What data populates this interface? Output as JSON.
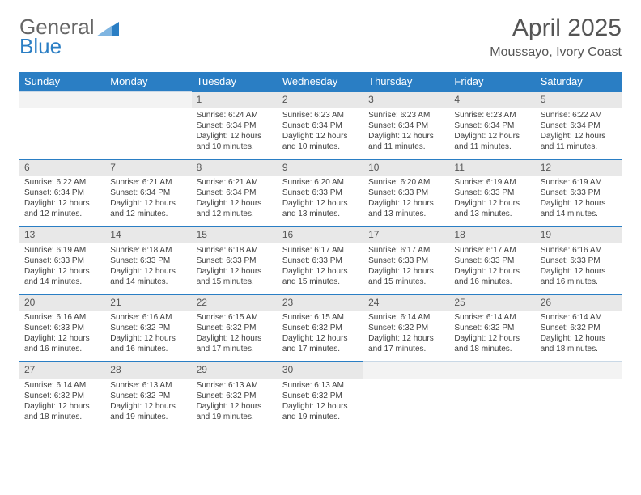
{
  "logo": {
    "part1": "General",
    "part2": "Blue"
  },
  "title": "April 2025",
  "location": "Moussayo, Ivory Coast",
  "colors": {
    "header_bg": "#2a7ec4",
    "header_text": "#ffffff",
    "day_num_bg": "#e8e8e8",
    "day_border": "#2a7ec4",
    "body_bg": "#ffffff",
    "text": "#404040"
  },
  "columns": [
    "Sunday",
    "Monday",
    "Tuesday",
    "Wednesday",
    "Thursday",
    "Friday",
    "Saturday"
  ],
  "rows": [
    [
      null,
      null,
      {
        "n": "1",
        "sr": "Sunrise: 6:24 AM",
        "ss": "Sunset: 6:34 PM",
        "dl1": "Daylight: 12 hours",
        "dl2": "and 10 minutes."
      },
      {
        "n": "2",
        "sr": "Sunrise: 6:23 AM",
        "ss": "Sunset: 6:34 PM",
        "dl1": "Daylight: 12 hours",
        "dl2": "and 10 minutes."
      },
      {
        "n": "3",
        "sr": "Sunrise: 6:23 AM",
        "ss": "Sunset: 6:34 PM",
        "dl1": "Daylight: 12 hours",
        "dl2": "and 11 minutes."
      },
      {
        "n": "4",
        "sr": "Sunrise: 6:23 AM",
        "ss": "Sunset: 6:34 PM",
        "dl1": "Daylight: 12 hours",
        "dl2": "and 11 minutes."
      },
      {
        "n": "5",
        "sr": "Sunrise: 6:22 AM",
        "ss": "Sunset: 6:34 PM",
        "dl1": "Daylight: 12 hours",
        "dl2": "and 11 minutes."
      }
    ],
    [
      {
        "n": "6",
        "sr": "Sunrise: 6:22 AM",
        "ss": "Sunset: 6:34 PM",
        "dl1": "Daylight: 12 hours",
        "dl2": "and 12 minutes."
      },
      {
        "n": "7",
        "sr": "Sunrise: 6:21 AM",
        "ss": "Sunset: 6:34 PM",
        "dl1": "Daylight: 12 hours",
        "dl2": "and 12 minutes."
      },
      {
        "n": "8",
        "sr": "Sunrise: 6:21 AM",
        "ss": "Sunset: 6:34 PM",
        "dl1": "Daylight: 12 hours",
        "dl2": "and 12 minutes."
      },
      {
        "n": "9",
        "sr": "Sunrise: 6:20 AM",
        "ss": "Sunset: 6:33 PM",
        "dl1": "Daylight: 12 hours",
        "dl2": "and 13 minutes."
      },
      {
        "n": "10",
        "sr": "Sunrise: 6:20 AM",
        "ss": "Sunset: 6:33 PM",
        "dl1": "Daylight: 12 hours",
        "dl2": "and 13 minutes."
      },
      {
        "n": "11",
        "sr": "Sunrise: 6:19 AM",
        "ss": "Sunset: 6:33 PM",
        "dl1": "Daylight: 12 hours",
        "dl2": "and 13 minutes."
      },
      {
        "n": "12",
        "sr": "Sunrise: 6:19 AM",
        "ss": "Sunset: 6:33 PM",
        "dl1": "Daylight: 12 hours",
        "dl2": "and 14 minutes."
      }
    ],
    [
      {
        "n": "13",
        "sr": "Sunrise: 6:19 AM",
        "ss": "Sunset: 6:33 PM",
        "dl1": "Daylight: 12 hours",
        "dl2": "and 14 minutes."
      },
      {
        "n": "14",
        "sr": "Sunrise: 6:18 AM",
        "ss": "Sunset: 6:33 PM",
        "dl1": "Daylight: 12 hours",
        "dl2": "and 14 minutes."
      },
      {
        "n": "15",
        "sr": "Sunrise: 6:18 AM",
        "ss": "Sunset: 6:33 PM",
        "dl1": "Daylight: 12 hours",
        "dl2": "and 15 minutes."
      },
      {
        "n": "16",
        "sr": "Sunrise: 6:17 AM",
        "ss": "Sunset: 6:33 PM",
        "dl1": "Daylight: 12 hours",
        "dl2": "and 15 minutes."
      },
      {
        "n": "17",
        "sr": "Sunrise: 6:17 AM",
        "ss": "Sunset: 6:33 PM",
        "dl1": "Daylight: 12 hours",
        "dl2": "and 15 minutes."
      },
      {
        "n": "18",
        "sr": "Sunrise: 6:17 AM",
        "ss": "Sunset: 6:33 PM",
        "dl1": "Daylight: 12 hours",
        "dl2": "and 16 minutes."
      },
      {
        "n": "19",
        "sr": "Sunrise: 6:16 AM",
        "ss": "Sunset: 6:33 PM",
        "dl1": "Daylight: 12 hours",
        "dl2": "and 16 minutes."
      }
    ],
    [
      {
        "n": "20",
        "sr": "Sunrise: 6:16 AM",
        "ss": "Sunset: 6:33 PM",
        "dl1": "Daylight: 12 hours",
        "dl2": "and 16 minutes."
      },
      {
        "n": "21",
        "sr": "Sunrise: 6:16 AM",
        "ss": "Sunset: 6:32 PM",
        "dl1": "Daylight: 12 hours",
        "dl2": "and 16 minutes."
      },
      {
        "n": "22",
        "sr": "Sunrise: 6:15 AM",
        "ss": "Sunset: 6:32 PM",
        "dl1": "Daylight: 12 hours",
        "dl2": "and 17 minutes."
      },
      {
        "n": "23",
        "sr": "Sunrise: 6:15 AM",
        "ss": "Sunset: 6:32 PM",
        "dl1": "Daylight: 12 hours",
        "dl2": "and 17 minutes."
      },
      {
        "n": "24",
        "sr": "Sunrise: 6:14 AM",
        "ss": "Sunset: 6:32 PM",
        "dl1": "Daylight: 12 hours",
        "dl2": "and 17 minutes."
      },
      {
        "n": "25",
        "sr": "Sunrise: 6:14 AM",
        "ss": "Sunset: 6:32 PM",
        "dl1": "Daylight: 12 hours",
        "dl2": "and 18 minutes."
      },
      {
        "n": "26",
        "sr": "Sunrise: 6:14 AM",
        "ss": "Sunset: 6:32 PM",
        "dl1": "Daylight: 12 hours",
        "dl2": "and 18 minutes."
      }
    ],
    [
      {
        "n": "27",
        "sr": "Sunrise: 6:14 AM",
        "ss": "Sunset: 6:32 PM",
        "dl1": "Daylight: 12 hours",
        "dl2": "and 18 minutes."
      },
      {
        "n": "28",
        "sr": "Sunrise: 6:13 AM",
        "ss": "Sunset: 6:32 PM",
        "dl1": "Daylight: 12 hours",
        "dl2": "and 19 minutes."
      },
      {
        "n": "29",
        "sr": "Sunrise: 6:13 AM",
        "ss": "Sunset: 6:32 PM",
        "dl1": "Daylight: 12 hours",
        "dl2": "and 19 minutes."
      },
      {
        "n": "30",
        "sr": "Sunrise: 6:13 AM",
        "ss": "Sunset: 6:32 PM",
        "dl1": "Daylight: 12 hours",
        "dl2": "and 19 minutes."
      },
      null,
      null,
      null
    ]
  ]
}
